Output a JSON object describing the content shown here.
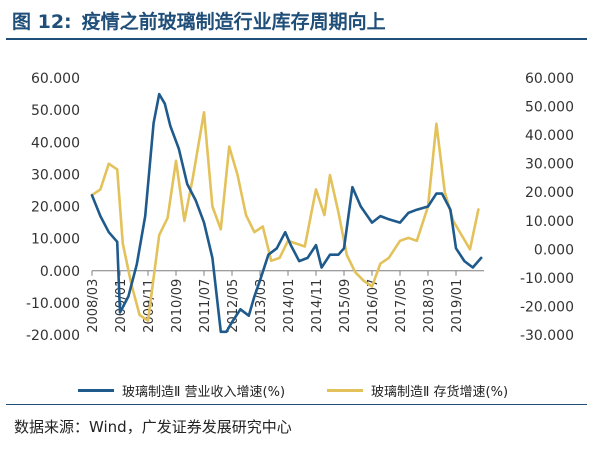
{
  "figure": {
    "number": "图 12:",
    "title": "疫情之前玻璃制造行业库存周期向上",
    "source": "数据来源：Wind，广发证券发展研究中心"
  },
  "colors": {
    "title": "#1f4e79",
    "revenue": "#1f5a8c",
    "inventory": "#e3c25b",
    "axis": "#7f7f7f"
  },
  "chart_data": {
    "type": "line",
    "x_ticks": [
      "2008/03",
      "2009/01",
      "2009/11",
      "2010/09",
      "2011/07",
      "2012/05",
      "2013/03",
      "2014/01",
      "2014/11",
      "2015/09",
      "2016/07",
      "2017/05",
      "2018/03",
      "2019/01"
    ],
    "x_range": [
      "2008/03",
      "2019/11"
    ],
    "y_left": {
      "ticks": [
        "-20.000",
        "-10.000",
        "0.000",
        "10.000",
        "20.000",
        "30.000",
        "40.000",
        "50.000",
        "60.000"
      ],
      "range": [
        -20,
        60
      ]
    },
    "y_right": {
      "ticks": [
        "-30.000",
        "-20.000",
        "-10.000",
        "0.000",
        "10.000",
        "20.000",
        "30.000",
        "40.000",
        "50.000",
        "60.000"
      ],
      "range": [
        -30,
        60
      ]
    },
    "grid": false,
    "legend_position": "bottom",
    "series": [
      {
        "name": "玻璃制造Ⅱ 营业收入增速(%)",
        "axis": "left",
        "color": "#1f5a8c",
        "points": [
          [
            "2008/03",
            23.5
          ],
          [
            "2008/06",
            17
          ],
          [
            "2008/09",
            12
          ],
          [
            "2008/12",
            9
          ],
          [
            "2009/01",
            -13
          ],
          [
            "2009/04",
            -8
          ],
          [
            "2009/07",
            2
          ],
          [
            "2009/10",
            17
          ],
          [
            "2010/01",
            46
          ],
          [
            "2010/03",
            55
          ],
          [
            "2010/05",
            52
          ],
          [
            "2010/07",
            45
          ],
          [
            "2010/10",
            38
          ],
          [
            "2011/01",
            27
          ],
          [
            "2011/04",
            22
          ],
          [
            "2011/07",
            15
          ],
          [
            "2011/10",
            4
          ],
          [
            "2012/01",
            -19
          ],
          [
            "2012/03",
            -19
          ],
          [
            "2012/05",
            -16
          ],
          [
            "2012/08",
            -12
          ],
          [
            "2012/11",
            -14
          ],
          [
            "2013/01",
            -8
          ],
          [
            "2013/03",
            -3
          ],
          [
            "2013/06",
            5
          ],
          [
            "2013/09",
            7
          ],
          [
            "2013/12",
            12
          ],
          [
            "2014/02",
            8
          ],
          [
            "2014/05",
            3
          ],
          [
            "2014/08",
            4
          ],
          [
            "2014/11",
            8
          ],
          [
            "2015/01",
            1
          ],
          [
            "2015/04",
            5
          ],
          [
            "2015/07",
            5
          ],
          [
            "2015/09",
            7
          ],
          [
            "2015/12",
            26
          ],
          [
            "2016/03",
            20
          ],
          [
            "2016/07",
            15
          ],
          [
            "2016/10",
            17
          ],
          [
            "2017/01",
            16
          ],
          [
            "2017/05",
            15
          ],
          [
            "2017/08",
            18
          ],
          [
            "2017/11",
            19
          ],
          [
            "2018/03",
            20
          ],
          [
            "2018/06",
            24
          ],
          [
            "2018/08",
            24
          ],
          [
            "2018/11",
            19
          ],
          [
            "2019/01",
            7
          ],
          [
            "2019/04",
            3
          ],
          [
            "2019/07",
            1
          ],
          [
            "2019/10",
            4
          ]
        ]
      },
      {
        "name": "玻璃制造Ⅱ 存货增速(%)",
        "axis": "right",
        "color": "#e3c25b",
        "points": [
          [
            "2008/03",
            19
          ],
          [
            "2008/06",
            21
          ],
          [
            "2008/09",
            30
          ],
          [
            "2008/12",
            28
          ],
          [
            "2009/02",
            2
          ],
          [
            "2009/05",
            -12
          ],
          [
            "2009/08",
            -23
          ],
          [
            "2009/11",
            -25
          ],
          [
            "2010/03",
            5
          ],
          [
            "2010/06",
            11
          ],
          [
            "2010/09",
            31
          ],
          [
            "2010/12",
            10
          ],
          [
            "2011/03",
            25
          ],
          [
            "2011/07",
            48
          ],
          [
            "2011/10",
            15
          ],
          [
            "2012/01",
            7
          ],
          [
            "2012/04",
            36
          ],
          [
            "2012/07",
            26
          ],
          [
            "2012/10",
            12
          ],
          [
            "2013/01",
            6
          ],
          [
            "2013/04",
            8
          ],
          [
            "2013/07",
            -4
          ],
          [
            "2013/10",
            -3
          ],
          [
            "2014/01",
            3
          ],
          [
            "2014/04",
            2
          ],
          [
            "2014/07",
            1
          ],
          [
            "2014/11",
            21
          ],
          [
            "2015/02",
            12
          ],
          [
            "2015/04",
            26
          ],
          [
            "2015/07",
            13
          ],
          [
            "2015/10",
            -2
          ],
          [
            "2016/01",
            -8
          ],
          [
            "2016/04",
            -11
          ],
          [
            "2016/07",
            -13
          ],
          [
            "2016/10",
            -5
          ],
          [
            "2017/01",
            -3
          ],
          [
            "2017/05",
            3
          ],
          [
            "2017/08",
            4
          ],
          [
            "2017/11",
            3
          ],
          [
            "2018/03",
            15
          ],
          [
            "2018/06",
            44
          ],
          [
            "2018/09",
            20
          ],
          [
            "2018/12",
            10
          ],
          [
            "2019/03",
            5
          ],
          [
            "2019/06",
            0
          ],
          [
            "2019/09",
            14
          ]
        ]
      }
    ]
  }
}
